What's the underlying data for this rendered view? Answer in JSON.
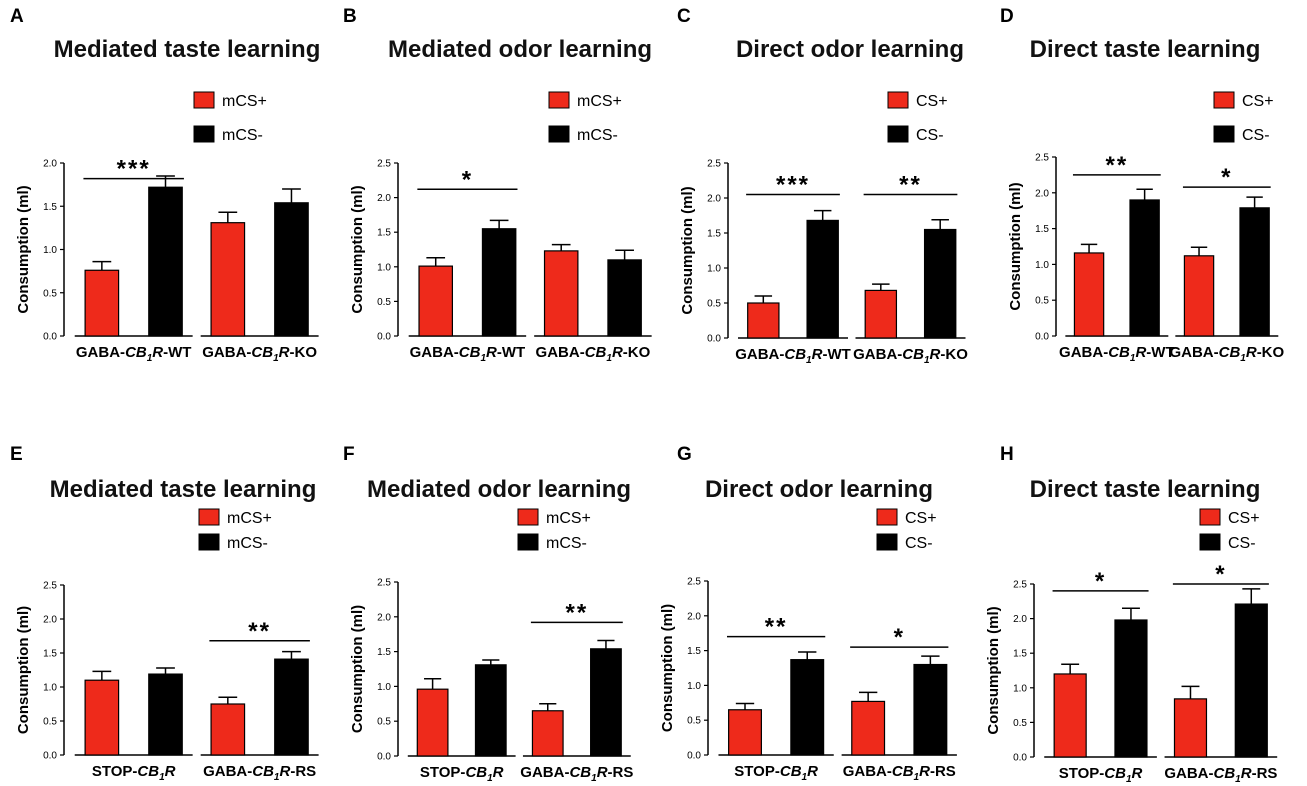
{
  "figure": {
    "background": "#ffffff"
  },
  "colors": {
    "red": "#ee2a1b",
    "black": "#000000",
    "axis": "#000000"
  },
  "chart_data": [
    {
      "panel": "A",
      "type": "bar",
      "title": "Mediated taste learning",
      "ylabel": "Consumption (ml)",
      "ylim": [
        0,
        2.0
      ],
      "yticks": [
        "0.0",
        "0.5",
        "1.0",
        "1.5",
        "2.0"
      ],
      "grid": false,
      "legend_position": "top-right",
      "series": [
        {
          "name": "mCS+",
          "color": "#ee2a1b"
        },
        {
          "name": "mCS-",
          "color": "#000000"
        }
      ],
      "groups": [
        {
          "label": "GABA-CB1R-WT",
          "prefix": "GABA-",
          "italic": "CB",
          "sub": "1",
          "italic2": "R",
          "suffix": "-WT",
          "values": [
            0.76,
            1.72
          ],
          "errors": [
            0.1,
            0.13
          ]
        },
        {
          "label": "GABA-CB1R-KO",
          "prefix": "GABA-",
          "italic": "CB",
          "sub": "1",
          "italic2": "R",
          "suffix": "-KO",
          "values": [
            1.31,
            1.54
          ],
          "errors": [
            0.12,
            0.16
          ]
        }
      ],
      "significance": [
        {
          "group": 0,
          "label": "***",
          "y": 1.82
        }
      ]
    },
    {
      "panel": "B",
      "type": "bar",
      "title": "Mediated odor learning",
      "ylabel": "Consumption (ml)",
      "ylim": [
        0,
        2.5
      ],
      "yticks": [
        "0.0",
        "0.5",
        "1.0",
        "1.5",
        "2.0",
        "2.5"
      ],
      "grid": false,
      "legend_position": "top-right",
      "series": [
        {
          "name": "mCS+",
          "color": "#ee2a1b"
        },
        {
          "name": "mCS-",
          "color": "#000000"
        }
      ],
      "groups": [
        {
          "label": "GABA-CB1R-WT",
          "prefix": "GABA-",
          "italic": "CB",
          "sub": "1",
          "italic2": "R",
          "suffix": "-WT",
          "values": [
            1.01,
            1.55
          ],
          "errors": [
            0.12,
            0.12
          ]
        },
        {
          "label": "GABA-CB1R-KO",
          "prefix": "GABA-",
          "italic": "CB",
          "sub": "1",
          "italic2": "R",
          "suffix": "-KO",
          "values": [
            1.23,
            1.1
          ],
          "errors": [
            0.09,
            0.14
          ]
        }
      ],
      "significance": [
        {
          "group": 0,
          "label": "*",
          "y": 2.12
        }
      ]
    },
    {
      "panel": "C",
      "type": "bar",
      "title": "Direct odor learning",
      "ylabel": "Consumption (ml)",
      "ylim": [
        0,
        2.5
      ],
      "yticks": [
        "0.0",
        "0.5",
        "1.0",
        "1.5",
        "2.0",
        "2.5"
      ],
      "grid": false,
      "legend_position": "top-right",
      "series": [
        {
          "name": "CS+",
          "color": "#ee2a1b"
        },
        {
          "name": "CS-",
          "color": "#000000"
        }
      ],
      "groups": [
        {
          "label": "GABA-CB1R-WT",
          "prefix": "GABA-",
          "italic": "CB",
          "sub": "1",
          "italic2": "R",
          "suffix": "-WT",
          "values": [
            0.5,
            1.68
          ],
          "errors": [
            0.1,
            0.14
          ]
        },
        {
          "label": "GABA-CB1R-KO",
          "prefix": "GABA-",
          "italic": "CB",
          "sub": "1",
          "italic2": "R",
          "suffix": "-KO",
          "values": [
            0.68,
            1.55
          ],
          "errors": [
            0.09,
            0.14
          ]
        }
      ],
      "significance": [
        {
          "group": 0,
          "label": "***",
          "y": 2.05
        },
        {
          "group": 1,
          "label": "**",
          "y": 2.05
        }
      ]
    },
    {
      "panel": "D",
      "type": "bar",
      "title": "Direct taste learning",
      "ylabel": "Consumption (ml)",
      "ylim": [
        0,
        2.5
      ],
      "yticks": [
        "0.0",
        "0.5",
        "1.0",
        "1.5",
        "2.0",
        "2.5"
      ],
      "grid": false,
      "legend_position": "top-right",
      "series": [
        {
          "name": "CS+",
          "color": "#ee2a1b"
        },
        {
          "name": "CS-",
          "color": "#000000"
        }
      ],
      "groups": [
        {
          "label": "GABA-CB1R-WT",
          "prefix": "GABA-",
          "italic": "CB",
          "sub": "1",
          "italic2": "R",
          "suffix": "-WT",
          "values": [
            1.16,
            1.9
          ],
          "errors": [
            0.12,
            0.15
          ]
        },
        {
          "label": "GABA-CB1R-KO",
          "prefix": "GABA-",
          "italic": "CB",
          "sub": "1",
          "italic2": "R",
          "suffix": "-KO",
          "values": [
            1.12,
            1.79
          ],
          "errors": [
            0.12,
            0.15
          ]
        }
      ],
      "significance": [
        {
          "group": 0,
          "label": "**",
          "y": 2.25
        },
        {
          "group": 1,
          "label": "*",
          "y": 2.08
        }
      ]
    },
    {
      "panel": "E",
      "type": "bar",
      "title": "Mediated taste learning",
      "ylabel": "Consumption (ml)",
      "ylim": [
        0,
        2.5
      ],
      "yticks": [
        "0.0",
        "0.5",
        "1.0",
        "1.5",
        "2.0",
        "2.5"
      ],
      "grid": false,
      "legend_position": "top-right",
      "series": [
        {
          "name": "mCS+",
          "color": "#ee2a1b"
        },
        {
          "name": "mCS-",
          "color": "#000000"
        }
      ],
      "groups": [
        {
          "label": "STOP-CB1R",
          "prefix": "STOP-",
          "italic": "CB",
          "sub": "1",
          "italic2": "R",
          "suffix": "",
          "values": [
            1.1,
            1.19
          ],
          "errors": [
            0.13,
            0.09
          ]
        },
        {
          "label": "GABA-CB1R-RS",
          "prefix": "GABA-",
          "italic": "CB",
          "sub": "1",
          "italic2": "R",
          "suffix": "-RS",
          "values": [
            0.75,
            1.41
          ],
          "errors": [
            0.1,
            0.11
          ]
        }
      ],
      "significance": [
        {
          "group": 1,
          "label": "**",
          "y": 1.68
        }
      ]
    },
    {
      "panel": "F",
      "type": "bar",
      "title": "Mediated odor learning",
      "ylabel": "Consumption (ml)",
      "ylim": [
        0,
        2.5
      ],
      "yticks": [
        "0.0",
        "0.5",
        "1.0",
        "1.5",
        "2.0",
        "2.5"
      ],
      "grid": false,
      "legend_position": "top-right",
      "series": [
        {
          "name": "mCS+",
          "color": "#ee2a1b"
        },
        {
          "name": "mCS-",
          "color": "#000000"
        }
      ],
      "groups": [
        {
          "label": "STOP-CB1R",
          "prefix": "STOP-",
          "italic": "CB",
          "sub": "1",
          "italic2": "R",
          "suffix": "",
          "values": [
            0.96,
            1.31
          ],
          "errors": [
            0.15,
            0.07
          ]
        },
        {
          "label": "GABA-CB1R-RS",
          "prefix": "GABA-",
          "italic": "CB",
          "sub": "1",
          "italic2": "R",
          "suffix": "-RS",
          "values": [
            0.65,
            1.54
          ],
          "errors": [
            0.1,
            0.12
          ]
        }
      ],
      "significance": [
        {
          "group": 1,
          "label": "**",
          "y": 1.92
        }
      ]
    },
    {
      "panel": "G",
      "type": "bar",
      "title": "Direct odor learning",
      "ylabel": "Consumption (ml)",
      "ylim": [
        0,
        2.5
      ],
      "yticks": [
        "0.0",
        "0.5",
        "1.0",
        "1.5",
        "2.0",
        "2.5"
      ],
      "grid": false,
      "legend_position": "top-right",
      "series": [
        {
          "name": "CS+",
          "color": "#ee2a1b"
        },
        {
          "name": "CS-",
          "color": "#000000"
        }
      ],
      "groups": [
        {
          "label": "STOP-CB1R",
          "prefix": "STOP-",
          "italic": "CB",
          "sub": "1",
          "italic2": "R",
          "suffix": "",
          "values": [
            0.65,
            1.37
          ],
          "errors": [
            0.09,
            0.11
          ]
        },
        {
          "label": "GABA-CB1R-RS",
          "prefix": "GABA-",
          "italic": "CB",
          "sub": "1",
          "italic2": "R",
          "suffix": "-RS",
          "values": [
            0.77,
            1.3
          ],
          "errors": [
            0.13,
            0.12
          ]
        }
      ],
      "significance": [
        {
          "group": 0,
          "label": "**",
          "y": 1.7
        },
        {
          "group": 1,
          "label": "*",
          "y": 1.55
        }
      ]
    },
    {
      "panel": "H",
      "type": "bar",
      "title": "Direct taste learning",
      "ylabel": "Consumption (ml)",
      "ylim": [
        0,
        2.5
      ],
      "yticks": [
        "0.0",
        "0.5",
        "1.0",
        "1.5",
        "2.0",
        "2.5"
      ],
      "grid": false,
      "legend_position": "top-right",
      "series": [
        {
          "name": "CS+",
          "color": "#ee2a1b"
        },
        {
          "name": "CS-",
          "color": "#000000"
        }
      ],
      "groups": [
        {
          "label": "STOP-CB1R",
          "prefix": "STOP-",
          "italic": "CB",
          "sub": "1",
          "italic2": "R",
          "suffix": "",
          "values": [
            1.2,
            1.98
          ],
          "errors": [
            0.14,
            0.17
          ]
        },
        {
          "label": "GABA-CB1R-RS",
          "prefix": "GABA-",
          "italic": "CB",
          "sub": "1",
          "italic2": "R",
          "suffix": "-RS",
          "values": [
            0.84,
            2.21
          ],
          "errors": [
            0.18,
            0.22
          ]
        }
      ],
      "significance": [
        {
          "group": 0,
          "label": "*",
          "y": 2.4
        },
        {
          "group": 1,
          "label": "*",
          "y": 2.5
        }
      ]
    }
  ]
}
